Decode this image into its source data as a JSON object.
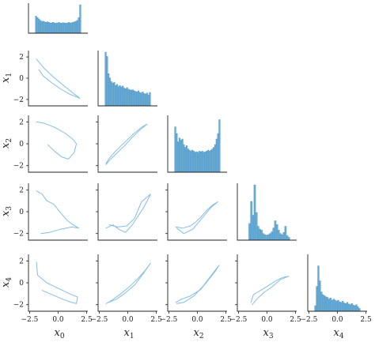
{
  "chart_data": {
    "type": "pairplot",
    "variables": [
      {
        "key": "x0",
        "base": "x",
        "sub": "0"
      },
      {
        "key": "x1",
        "base": "x",
        "sub": "1"
      },
      {
        "key": "x2",
        "base": "x",
        "sub": "2"
      },
      {
        "key": "x3",
        "base": "x",
        "sub": "3"
      },
      {
        "key": "x4",
        "base": "x",
        "sub": "4"
      }
    ],
    "lower_panels": "scatter",
    "diagonal_panels": "histogram",
    "upper_panels": "empty",
    "xlim": [
      -2.6,
      2.6
    ],
    "ylim": [
      -2.6,
      2.6
    ],
    "xticks": [
      -2.5,
      0.0,
      2.5
    ],
    "xtick_labels": [
      "−2.5",
      "0.0",
      "2.5"
    ],
    "yticks": [
      -2,
      0,
      2
    ],
    "ytick_labels": [
      "−2",
      "0",
      "2"
    ],
    "color": "#6aaed6",
    "histograms": [
      {
        "variable": "x0",
        "bin_start": -2.0,
        "bin_end": 2.0,
        "counts": [
          0.6,
          0.55,
          0.5,
          0.45,
          0.42,
          0.42,
          0.4,
          0.38,
          0.4,
          0.38,
          0.36,
          0.36,
          0.38,
          0.36,
          0.35,
          0.36,
          0.38,
          0.36,
          0.35,
          0.37,
          0.36,
          0.35,
          0.36,
          0.38,
          0.36,
          0.37,
          0.38,
          0.4,
          0.42,
          0.45,
          0.55,
          1.0
        ]
      },
      {
        "variable": "x1",
        "bin_start": -2.0,
        "bin_end": 2.0,
        "counts": [
          1.0,
          0.92,
          0.6,
          0.52,
          0.45,
          0.42,
          0.44,
          0.38,
          0.4,
          0.36,
          0.38,
          0.35,
          0.37,
          0.33,
          0.32,
          0.34,
          0.31,
          0.3,
          0.29,
          0.3,
          0.28,
          0.27,
          0.26,
          0.28,
          0.25,
          0.24,
          0.26,
          0.23,
          0.22,
          0.24,
          0.2,
          0.25
        ]
      },
      {
        "variable": "x2",
        "bin_start": -2.0,
        "bin_end": 2.0,
        "counts": [
          0.82,
          0.7,
          0.55,
          0.62,
          0.58,
          0.6,
          0.5,
          0.45,
          0.48,
          0.42,
          0.4,
          0.38,
          0.4,
          0.38,
          0.36,
          0.37,
          0.36,
          0.38,
          0.37,
          0.38,
          0.36,
          0.37,
          0.38,
          0.4,
          0.38,
          0.4,
          0.42,
          0.45,
          0.5,
          0.6,
          0.7,
          0.95
        ]
      },
      {
        "variable": "x3",
        "bin_start": -1.6,
        "bin_end": 2.0,
        "counts": [
          0.3,
          0.7,
          0.45,
          1.0,
          0.5,
          0.25,
          0.2,
          0.18,
          0.12,
          0.1,
          0.09,
          0.1,
          0.12,
          0.15,
          0.22,
          0.35,
          0.28,
          0.18,
          0.12,
          0.1,
          0.14,
          0.25,
          0.08,
          0.05
        ]
      },
      {
        "variable": "x4",
        "bin_start": -2.0,
        "bin_end": 2.0,
        "counts": [
          0.1,
          0.45,
          0.82,
          0.55,
          0.35,
          0.3,
          0.28,
          0.26,
          0.25,
          0.22,
          0.24,
          0.2,
          0.22,
          0.2,
          0.18,
          0.2,
          0.17,
          0.16,
          0.18,
          0.15,
          0.14,
          0.16,
          0.13,
          0.12,
          0.14,
          0.11,
          0.1,
          0.12,
          0.08,
          0.05
        ]
      }
    ],
    "scatters": [
      {
        "x": "x0",
        "y": "x1",
        "points": [
          [
            -1.9,
            1.8
          ],
          [
            -1.2,
            0.9
          ],
          [
            -0.4,
            0.1
          ],
          [
            0.5,
            -0.7
          ],
          [
            1.3,
            -1.4
          ],
          [
            1.8,
            -1.8
          ],
          [
            1.9,
            -1.9
          ],
          [
            1.6,
            -1.75
          ],
          [
            1.0,
            -1.5
          ],
          [
            0.2,
            -1.0
          ],
          [
            -0.6,
            -0.4
          ],
          [
            -1.3,
            0.2
          ],
          [
            -1.7,
            0.8
          ]
        ]
      },
      {
        "x": "x0",
        "y": "x2",
        "points": [
          [
            -1.9,
            2.0
          ],
          [
            -1.3,
            1.9
          ],
          [
            -0.3,
            1.5
          ],
          [
            0.7,
            0.9
          ],
          [
            1.3,
            0.4
          ],
          [
            1.6,
            0.0
          ],
          [
            1.4,
            -0.8
          ],
          [
            0.9,
            -1.4
          ],
          [
            0.3,
            -1.2
          ],
          [
            -0.3,
            -0.7
          ],
          [
            -0.9,
            -0.1
          ]
        ]
      },
      {
        "x": "x0",
        "y": "x3",
        "points": [
          [
            -1.9,
            1.9
          ],
          [
            -1.4,
            1.6
          ],
          [
            -1.0,
            1.0
          ],
          [
            -0.4,
            0.7
          ],
          [
            -0.1,
            0.3
          ],
          [
            0.3,
            -0.2
          ],
          [
            0.8,
            -0.8
          ],
          [
            1.3,
            -1.2
          ],
          [
            1.8,
            -1.5
          ],
          [
            1.2,
            -1.4
          ],
          [
            0.2,
            -1.6
          ],
          [
            -0.8,
            -1.9
          ],
          [
            -1.5,
            -2.0
          ]
        ]
      },
      {
        "x": "x0",
        "y": "x4",
        "points": [
          [
            -1.9,
            1.9
          ],
          [
            -1.8,
            0.7
          ],
          [
            -1.0,
            0.0
          ],
          [
            0.2,
            -0.6
          ],
          [
            1.2,
            -1.1
          ],
          [
            1.7,
            -1.3
          ],
          [
            1.6,
            -1.9
          ],
          [
            1.2,
            -1.8
          ],
          [
            0.4,
            -1.5
          ],
          [
            -0.5,
            -1.1
          ],
          [
            -1.4,
            -0.7
          ]
        ]
      },
      {
        "x": "x1",
        "y": "x2",
        "points": [
          [
            -1.9,
            -1.9
          ],
          [
            -1.6,
            -1.5
          ],
          [
            -1.0,
            -0.9
          ],
          [
            -0.3,
            -0.2
          ],
          [
            0.4,
            0.6
          ],
          [
            1.1,
            1.3
          ],
          [
            1.7,
            1.8
          ],
          [
            1.2,
            1.5
          ],
          [
            0.5,
            0.9
          ],
          [
            -0.2,
            0.2
          ],
          [
            -1.0,
            -0.6
          ],
          [
            -1.6,
            -1.3
          ],
          [
            -1.9,
            -1.8
          ]
        ]
      },
      {
        "x": "x1",
        "y": "x3",
        "points": [
          [
            -1.9,
            -1.5
          ],
          [
            -1.3,
            -1.2
          ],
          [
            -0.8,
            -1.6
          ],
          [
            -0.2,
            -1.9
          ],
          [
            0.4,
            -1.2
          ],
          [
            0.9,
            -0.4
          ],
          [
            1.4,
            0.4
          ],
          [
            1.8,
            1.2
          ],
          [
            2.0,
            1.6
          ],
          [
            1.2,
            0.9
          ],
          [
            0.6,
            -0.6
          ],
          [
            -0.1,
            -1.3
          ],
          [
            -0.9,
            -1.4
          ],
          [
            -1.6,
            -1.2
          ]
        ]
      },
      {
        "x": "x1",
        "y": "x4",
        "points": [
          [
            -1.9,
            -1.9
          ],
          [
            -1.4,
            -1.6
          ],
          [
            -0.6,
            -1.0
          ],
          [
            0.2,
            -0.3
          ],
          [
            0.9,
            0.4
          ],
          [
            1.5,
            1.1
          ],
          [
            2.0,
            1.8
          ],
          [
            1.4,
            0.9
          ],
          [
            0.6,
            -0.2
          ],
          [
            -0.3,
            -1.0
          ],
          [
            -1.0,
            -1.5
          ],
          [
            -1.7,
            -1.8
          ]
        ]
      },
      {
        "x": "x2",
        "y": "x3",
        "points": [
          [
            -1.9,
            -1.4
          ],
          [
            -1.3,
            -1.5
          ],
          [
            -0.6,
            -1.3
          ],
          [
            -0.2,
            -1.0
          ],
          [
            0.3,
            -0.5
          ],
          [
            0.8,
            0.1
          ],
          [
            1.3,
            0.6
          ],
          [
            1.8,
            0.9
          ],
          [
            1.2,
            0.4
          ],
          [
            0.4,
            -0.6
          ],
          [
            -0.4,
            -1.6
          ],
          [
            -1.2,
            -2.0
          ],
          [
            -1.8,
            -1.5
          ]
        ]
      },
      {
        "x": "x2",
        "y": "x4",
        "points": [
          [
            -1.9,
            -1.8
          ],
          [
            -1.4,
            -1.5
          ],
          [
            -0.6,
            -1.2
          ],
          [
            0.3,
            -0.6
          ],
          [
            1.0,
            0.3
          ],
          [
            1.6,
            1.1
          ],
          [
            1.9,
            1.6
          ],
          [
            1.3,
            0.8
          ],
          [
            0.5,
            -0.3
          ],
          [
            -0.3,
            -1.2
          ],
          [
            -1.2,
            -1.8
          ],
          [
            -1.8,
            -1.9
          ]
        ]
      },
      {
        "x": "x3",
        "y": "x4",
        "points": [
          [
            -1.4,
            -1.8
          ],
          [
            -1.2,
            -1.1
          ],
          [
            -0.9,
            -0.9
          ],
          [
            -0.4,
            -0.6
          ],
          [
            0.2,
            -0.2
          ],
          [
            0.8,
            0.2
          ],
          [
            1.4,
            0.5
          ],
          [
            1.9,
            0.6
          ],
          [
            1.2,
            0.3
          ],
          [
            0.4,
            -0.4
          ],
          [
            -0.3,
            -0.9
          ],
          [
            -0.9,
            -1.5
          ],
          [
            -1.3,
            -2.0
          ]
        ]
      }
    ]
  }
}
